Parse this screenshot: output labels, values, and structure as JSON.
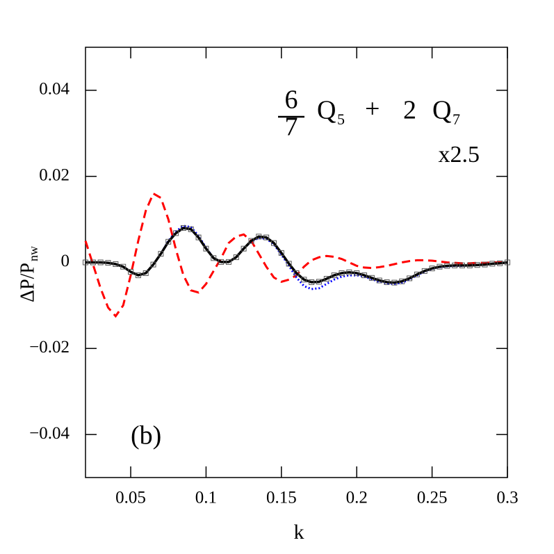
{
  "chart_data": {
    "type": "line",
    "xlabel": "k",
    "ylabel": "ΔP/P",
    "ylabel_sub": "nw",
    "annotations": {
      "formula": [
        "6",
        "7",
        "Q",
        "5",
        "+",
        "2",
        "Q",
        "7"
      ],
      "scale": "x2.5",
      "panel": "(b)"
    },
    "x": [
      0.02,
      0.025,
      0.03,
      0.035,
      0.04,
      0.045,
      0.05,
      0.055,
      0.06,
      0.065,
      0.07,
      0.075,
      0.08,
      0.085,
      0.09,
      0.095,
      0.1,
      0.105,
      0.11,
      0.115,
      0.12,
      0.125,
      0.13,
      0.135,
      0.14,
      0.145,
      0.15,
      0.155,
      0.16,
      0.165,
      0.17,
      0.175,
      0.18,
      0.185,
      0.19,
      0.195,
      0.2,
      0.205,
      0.21,
      0.215,
      0.22,
      0.225,
      0.23,
      0.235,
      0.24,
      0.245,
      0.25,
      0.255,
      0.26,
      0.265,
      0.27,
      0.275,
      0.28,
      0.285,
      0.29,
      0.295,
      0.3
    ],
    "series": [
      {
        "color": "#ff0000",
        "style": "dashed",
        "values": [
          0.005,
          -0.0005,
          -0.006,
          -0.0105,
          -0.0125,
          -0.01,
          -0.003,
          0.005,
          0.012,
          0.016,
          0.015,
          0.01,
          0.003,
          -0.003,
          -0.0065,
          -0.007,
          -0.005,
          -0.002,
          0.001,
          0.0045,
          0.006,
          0.0065,
          0.005,
          0.002,
          -0.001,
          -0.0035,
          -0.0045,
          -0.004,
          -0.003,
          -0.001,
          0.0005,
          0.0012,
          0.0015,
          0.0013,
          0.0008,
          0,
          -0.0008,
          -0.0012,
          -0.0013,
          -0.0011,
          -0.0008,
          -0.0004,
          0,
          0.0003,
          0.0005,
          0.0005,
          0.0004,
          0.0002,
          0,
          -0.0001,
          -0.0002,
          -0.0002,
          -0.0001,
          -0.0001,
          0,
          0,
          0
        ]
      },
      {
        "color": "#0000ff",
        "style": "dotted",
        "values": [
          0,
          0,
          0,
          -0.0001,
          -0.0004,
          -0.001,
          -0.0022,
          -0.003,
          -0.0025,
          -0.0005,
          0.002,
          0.005,
          0.0072,
          0.0085,
          0.0082,
          0.0062,
          0.0034,
          0.001,
          0.0001,
          0.0001,
          0.0012,
          0.0033,
          0.0048,
          0.0057,
          0.0055,
          0.0042,
          0.0018,
          -0.0008,
          -0.0035,
          -0.0055,
          -0.0062,
          -0.006,
          -0.005,
          -0.004,
          -0.0033,
          -0.003,
          -0.003,
          -0.0033,
          -0.0039,
          -0.0045,
          -0.0049,
          -0.005,
          -0.0047,
          -0.004,
          -0.003,
          -0.0021,
          -0.0015,
          -0.0011,
          -0.0009,
          -0.0008,
          -0.0008,
          -0.0007,
          -0.0006,
          -0.0005,
          -0.0003,
          -0.0002,
          0
        ]
      },
      {
        "color": "#000000",
        "style": "solid",
        "markers": true,
        "values": [
          0,
          0,
          0,
          -0.0001,
          -0.0004,
          -0.001,
          -0.0022,
          -0.003,
          -0.0025,
          -0.0005,
          0.002,
          0.0048,
          0.0068,
          0.008,
          0.0077,
          0.0058,
          0.0032,
          0.001,
          0.0001,
          0.0001,
          0.0012,
          0.0032,
          0.005,
          0.006,
          0.0058,
          0.0045,
          0.0022,
          -0.0003,
          -0.0025,
          -0.004,
          -0.0046,
          -0.0045,
          -0.0038,
          -0.003,
          -0.0025,
          -0.0023,
          -0.0025,
          -0.003,
          -0.0036,
          -0.0042,
          -0.0046,
          -0.0047,
          -0.0044,
          -0.0037,
          -0.0028,
          -0.002,
          -0.0014,
          -0.001,
          -0.0008,
          -0.0007,
          -0.0007,
          -0.0007,
          -0.0006,
          -0.0005,
          -0.0003,
          -0.0002,
          0
        ]
      }
    ],
    "xlim": [
      0.02,
      0.3
    ],
    "ylim": [
      -0.05,
      0.05
    ],
    "xticks": [
      0.05,
      0.1,
      0.15,
      0.2,
      0.25,
      0.3
    ],
    "yticks": [
      {
        "value": -0.04,
        "label": "−0.04"
      },
      {
        "value": -0.02,
        "label": "−0.02"
      },
      0,
      0.02,
      0.04
    ]
  }
}
